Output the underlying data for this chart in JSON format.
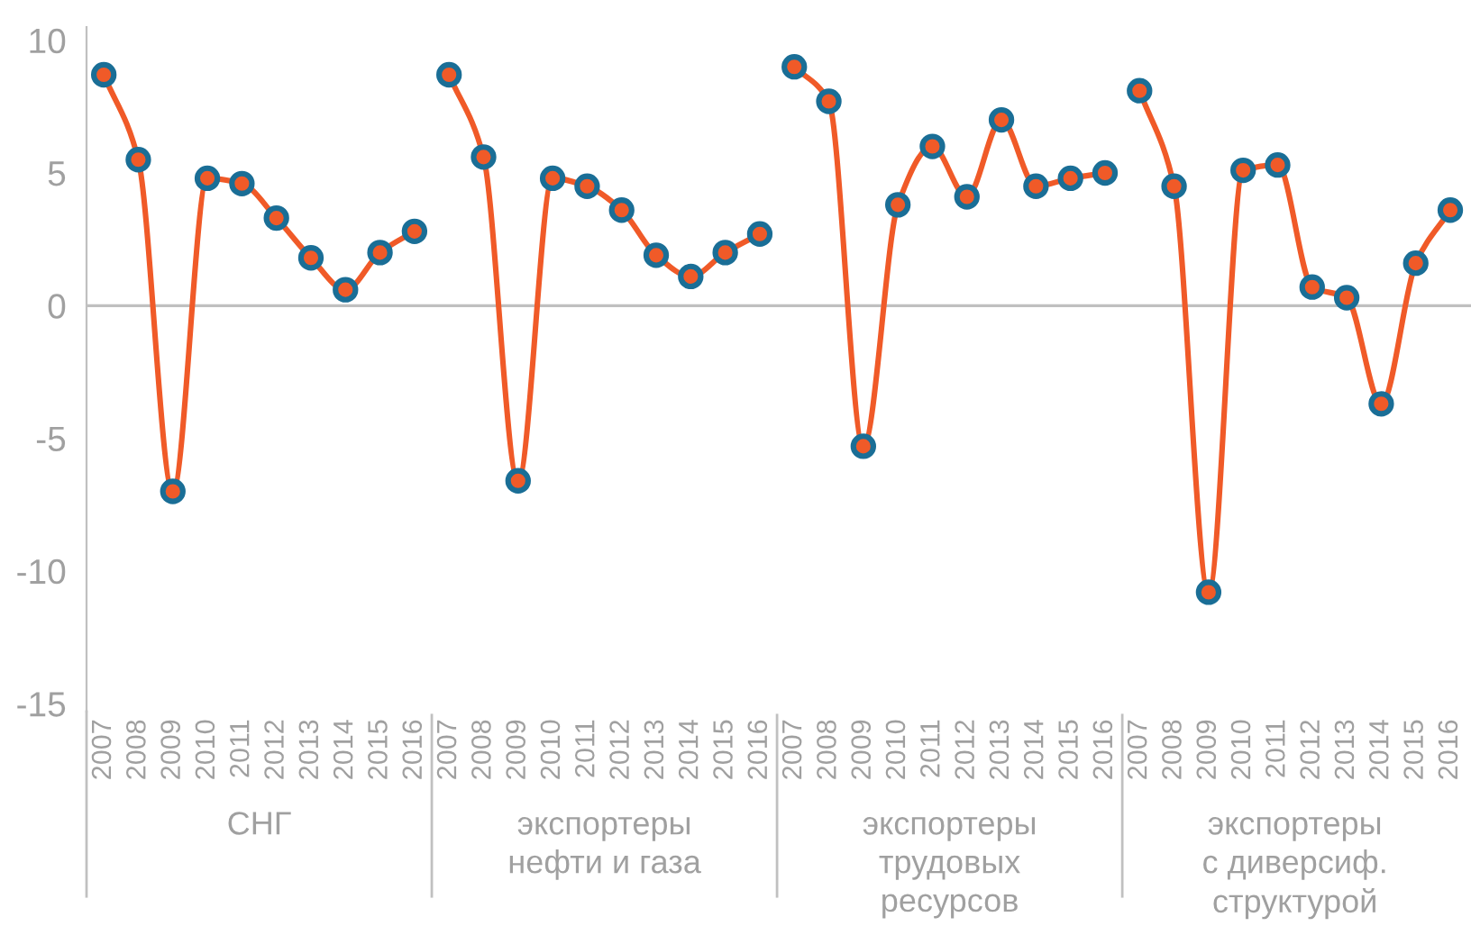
{
  "chart_data": {
    "type": "line",
    "categories": [
      "2007",
      "2008",
      "2009",
      "2010",
      "2011",
      "2012",
      "2013",
      "2014",
      "2015",
      "2016",
      "2007",
      "2008",
      "2009",
      "2010",
      "2011",
      "2012",
      "2013",
      "2014",
      "2015",
      "2016",
      "2007",
      "2008",
      "2009",
      "2010",
      "2011",
      "2012",
      "2013",
      "2014",
      "2015",
      "2016",
      "2007",
      "2008",
      "2009",
      "2010",
      "2011",
      "2012",
      "2013",
      "2014",
      "2015",
      "2016"
    ],
    "series": [
      {
        "color": "#f05a28",
        "values": [
          8.7,
          5.5,
          -7.0,
          4.8,
          4.6,
          3.3,
          1.8,
          0.6,
          2.0,
          2.8,
          null,
          null,
          null,
          null,
          null,
          null,
          null,
          null,
          null,
          null,
          null,
          null,
          null,
          null,
          null,
          null,
          null,
          null,
          null,
          null,
          null,
          null,
          null,
          null,
          null,
          null,
          null,
          null,
          null,
          null
        ]
      },
      {
        "color": "#f05a28",
        "values": [
          null,
          null,
          null,
          null,
          null,
          null,
          null,
          null,
          null,
          null,
          8.7,
          5.6,
          -6.6,
          4.8,
          4.5,
          3.6,
          1.9,
          1.1,
          2.0,
          2.7,
          null,
          null,
          null,
          null,
          null,
          null,
          null,
          null,
          null,
          null,
          null,
          null,
          null,
          null,
          null,
          null,
          null,
          null,
          null,
          null
        ]
      },
      {
        "color": "#f05a28",
        "values": [
          null,
          null,
          null,
          null,
          null,
          null,
          null,
          null,
          null,
          null,
          null,
          null,
          null,
          null,
          null,
          null,
          null,
          null,
          null,
          null,
          9.0,
          7.7,
          -5.3,
          3.8,
          6.0,
          4.1,
          7.0,
          4.5,
          4.8,
          5.0,
          null,
          null,
          null,
          null,
          null,
          null,
          null,
          null,
          null,
          null
        ]
      },
      {
        "color": "#f05a28",
        "values": [
          null,
          null,
          null,
          null,
          null,
          null,
          null,
          null,
          null,
          null,
          null,
          null,
          null,
          null,
          null,
          null,
          null,
          null,
          null,
          null,
          null,
          null,
          null,
          null,
          null,
          null,
          null,
          null,
          null,
          null,
          8.1,
          4.5,
          -10.8,
          5.1,
          5.3,
          0.7,
          0.3,
          -3.7,
          1.6,
          3.6
        ]
      }
    ],
    "annotations": [
      "СНГ",
      "экспортеры\nнефти и газа",
      "экспортеры\nтрудовых\nресурсов",
      "экспортеры\nс диверсиф.\nструктурой"
    ],
    "ylim": [
      -15.3,
      10.5
    ],
    "yticks": [
      -15,
      -10,
      -5,
      0,
      5,
      10
    ],
    "ref_lines": [
      {
        "axis": "y",
        "value": 0,
        "color": "#c0c0c0"
      }
    ],
    "grid": false,
    "marker": "circle",
    "line_style": "solid",
    "legend": false
  }
}
